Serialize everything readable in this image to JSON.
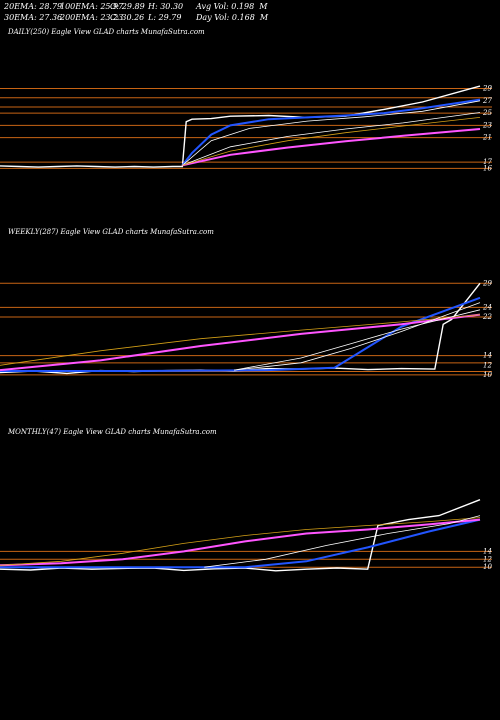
{
  "header": {
    "row1": [
      "20EMA: 28.79",
      "100EMA: 25.97",
      "O: 29.89",
      "H: 30.30",
      "Avg Vol: 0.198  M"
    ],
    "row2": [
      "30EMA: 27.36",
      "200EMA: 23.23",
      "C: 30.26",
      "L: 29.79",
      "Day Vol: 0.168  M"
    ]
  },
  "chart_data": [
    {
      "type": "line",
      "title": "DAILY(250) Eagle  View  GLAD charts MunafaSutra.com",
      "yticks": [
        "29",
        "27",
        "25",
        "23",
        "21",
        "17",
        "16"
      ],
      "hlines": [
        29,
        27.5,
        26,
        25,
        23,
        21,
        17,
        16
      ],
      "series": [
        {
          "color": "#ffffff",
          "x": [
            0,
            10,
            20,
            30,
            40,
            50,
            60,
            70,
            80,
            90,
            95,
            97,
            100,
            110,
            120,
            140,
            160,
            180,
            200,
            220,
            250
          ],
          "values": [
            16.4,
            16.3,
            16.2,
            16.3,
            16.4,
            16.3,
            16.2,
            16.3,
            16.2,
            16.3,
            16.3,
            23.6,
            24.0,
            24.1,
            24.5,
            24.6,
            24.3,
            24.5,
            25.6,
            26.8,
            29.4
          ]
        },
        {
          "color": "#2255ff",
          "x": [
            95,
            100,
            110,
            120,
            140,
            160,
            180,
            200,
            220,
            250
          ],
          "values": [
            16.5,
            18.5,
            21.5,
            23.0,
            24.0,
            24.3,
            24.6,
            25.0,
            25.8,
            27.2
          ]
        },
        {
          "color": "#ff55ff",
          "x": [
            95,
            120,
            150,
            180,
            210,
            250
          ],
          "values": [
            16.5,
            18.2,
            19.4,
            20.4,
            21.3,
            22.4
          ]
        },
        {
          "color": "#ffffff",
          "x": [
            95,
            110,
            130,
            160,
            190,
            220,
            250
          ],
          "values": [
            16.5,
            20.5,
            22.5,
            23.7,
            24.4,
            25.3,
            27.0
          ]
        },
        {
          "color": "#ffffff",
          "x": [
            95,
            120,
            150,
            180,
            210,
            250
          ],
          "values": [
            16.5,
            19.5,
            21.2,
            22.4,
            23.4,
            25.1
          ]
        },
        {
          "color": "#d4a017",
          "x": [
            95,
            120,
            150,
            180,
            210,
            250
          ],
          "values": [
            16.5,
            18.8,
            20.5,
            21.8,
            22.9,
            24.3
          ]
        }
      ],
      "xlim": [
        0,
        250
      ],
      "ylim": [
        11,
        33
      ]
    },
    {
      "type": "line",
      "title": "WEEKLY(287) Eagle  View  GLAD charts MunafaSutra.com",
      "yticks": [
        "29",
        "24",
        "22",
        "14",
        "12",
        "10"
      ],
      "hlines": [
        29,
        24,
        22,
        14,
        12.5,
        10.7,
        10
      ],
      "series": [
        {
          "color": "#ffffff",
          "x": [
            0,
            20,
            40,
            60,
            80,
            100,
            120,
            140,
            160,
            180,
            200,
            220,
            240,
            260,
            265,
            270,
            287
          ],
          "values": [
            10.5,
            10.8,
            10.3,
            10.9,
            10.7,
            10.9,
            11.0,
            10.8,
            11.3,
            11.2,
            11.4,
            11.1,
            11.3,
            11.2,
            20.5,
            21.5,
            29.0
          ]
        },
        {
          "color": "#2255ff",
          "x": [
            0,
            40,
            80,
            120,
            160,
            200,
            240,
            287
          ],
          "values": [
            10.8,
            10.8,
            10.8,
            10.9,
            11.0,
            11.5,
            20.0,
            26.0
          ]
        },
        {
          "color": "#ff55ff",
          "x": [
            0,
            60,
            120,
            180,
            240,
            287
          ],
          "values": [
            11.0,
            13.0,
            16.0,
            18.5,
            20.5,
            22.5
          ]
        },
        {
          "color": "#d4a017",
          "x": [
            0,
            60,
            120,
            180,
            240,
            287
          ],
          "values": [
            12.0,
            15.0,
            17.5,
            19.3,
            21.0,
            22.5
          ]
        },
        {
          "color": "#ffffff",
          "x": [
            140,
            180,
            210,
            240,
            287
          ],
          "values": [
            11.0,
            12.5,
            15.5,
            19.0,
            25.0
          ]
        },
        {
          "color": "#ffffff",
          "x": [
            140,
            180,
            210,
            240,
            287
          ],
          "values": [
            11.0,
            13.5,
            16.5,
            19.5,
            23.5
          ]
        }
      ],
      "xlim": [
        0,
        287
      ],
      "ylim": [
        5,
        33
      ]
    },
    {
      "type": "line",
      "title": "MONTHLY(47) Eagle  View  GLAD charts MunafaSutra.com",
      "yticks": [
        "14",
        "12",
        "10"
      ],
      "hlines": [
        14,
        12,
        10
      ],
      "series": [
        {
          "color": "#ffffff",
          "x": [
            0,
            3,
            6,
            9,
            12,
            15,
            18,
            21,
            24,
            27,
            30,
            33,
            36,
            37,
            40,
            43,
            47
          ],
          "values": [
            9.5,
            9.3,
            9.8,
            9.5,
            9.7,
            9.8,
            9.2,
            9.6,
            9.8,
            9.1,
            9.5,
            9.8,
            9.5,
            20.5,
            22.0,
            23.0,
            27.0
          ]
        },
        {
          "color": "#2255ff",
          "x": [
            0,
            6,
            12,
            18,
            24,
            30,
            36,
            42,
            47
          ],
          "values": [
            10.0,
            10.0,
            10.0,
            10.0,
            10.0,
            11.5,
            15.0,
            19.0,
            22.0
          ]
        },
        {
          "color": "#ff55ff",
          "x": [
            0,
            6,
            12,
            18,
            24,
            30,
            36,
            42,
            47
          ],
          "values": [
            10.5,
            11.0,
            12.0,
            14.0,
            16.5,
            18.5,
            19.5,
            20.8,
            22.0
          ]
        },
        {
          "color": "#d4a017",
          "x": [
            0,
            6,
            12,
            18,
            24,
            30,
            36,
            42,
            47
          ],
          "values": [
            10.5,
            11.5,
            13.5,
            16.0,
            18.0,
            19.5,
            20.5,
            21.5,
            22.5
          ]
        },
        {
          "color": "#ffffff",
          "x": [
            20,
            26,
            32,
            38,
            44,
            47
          ],
          "values": [
            10.0,
            12.0,
            15.5,
            18.5,
            21.0,
            23.0
          ]
        }
      ],
      "xlim": [
        0,
        47
      ],
      "ylim": [
        2,
        36
      ]
    }
  ]
}
